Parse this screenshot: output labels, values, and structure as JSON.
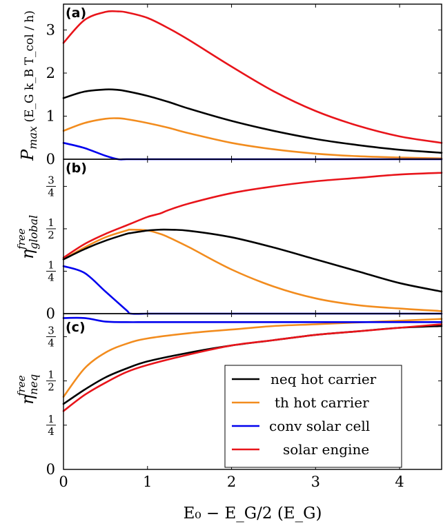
{
  "figure": {
    "xlabel": "E₀ − E_G/2 (E_G)",
    "legend": [
      "neq hot carrier",
      "th hot carrier",
      "conv solar cell",
      "solar engine"
    ]
  },
  "colors": {
    "neq hot carrier": "#000000",
    "th hot carrier": "#f28c1e",
    "conv solar cell": "#0000ee",
    "solar engine": "#e8141a"
  },
  "chart_data": [
    {
      "type": "line",
      "panel_label": "(a)",
      "ylabel": "P_max (E_G k_B T_col / h)",
      "xlim": [
        0,
        4.5
      ],
      "ylim": [
        0,
        3.6
      ],
      "x_ticks": [
        "0",
        "1",
        "2",
        "3",
        "4"
      ],
      "y_ticks": [
        {
          "v": 0,
          "t": "0"
        },
        {
          "v": 1,
          "t": "1"
        },
        {
          "v": 2,
          "t": "2"
        },
        {
          "v": 3,
          "t": "3"
        }
      ],
      "grid": false,
      "x": [
        0,
        0.25,
        0.5,
        0.65,
        0.75,
        1.0,
        1.25,
        1.5,
        2.0,
        2.5,
        3.0,
        3.5,
        4.0,
        4.5
      ],
      "series": [
        {
          "name": "neq hot carrier",
          "values": [
            1.42,
            1.57,
            1.62,
            1.61,
            1.58,
            1.47,
            1.33,
            1.17,
            0.89,
            0.66,
            0.47,
            0.33,
            0.22,
            0.15
          ]
        },
        {
          "name": "th hot carrier",
          "values": [
            0.66,
            0.84,
            0.94,
            0.95,
            0.93,
            0.84,
            0.73,
            0.6,
            0.38,
            0.23,
            0.13,
            0.07,
            0.04,
            0.02
          ]
        },
        {
          "name": "conv solar cell",
          "values": [
            0.38,
            0.26,
            0.08,
            0.0,
            0.0,
            0.0,
            0.0,
            0.0,
            0.0,
            0.0,
            0.0,
            0.0,
            0.0,
            0.0
          ]
        },
        {
          "name": "solar engine",
          "values": [
            2.7,
            3.23,
            3.42,
            3.43,
            3.41,
            3.28,
            3.04,
            2.76,
            2.15,
            1.58,
            1.12,
            0.78,
            0.53,
            0.38
          ]
        }
      ]
    },
    {
      "type": "line",
      "panel_label": "(b)",
      "ylabel": "η free global",
      "xlim": [
        0,
        4.5
      ],
      "ylim": [
        0,
        0.91
      ],
      "x_ticks": [
        "0",
        "1",
        "2",
        "3",
        "4"
      ],
      "y_ticks": [
        {
          "v": 0,
          "t": "0"
        },
        {
          "v": 0.25,
          "t": "1/4"
        },
        {
          "v": 0.5,
          "t": "1/2"
        },
        {
          "v": 0.75,
          "t": "3/4"
        }
      ],
      "grid": false,
      "x": [
        0,
        0.25,
        0.5,
        0.75,
        0.8,
        1.0,
        1.15,
        1.25,
        1.5,
        2.0,
        2.5,
        3.0,
        3.5,
        4.0,
        4.5
      ],
      "series": [
        {
          "name": "neq hot carrier",
          "values": [
            0.32,
            0.38,
            0.43,
            0.47,
            0.475,
            0.49,
            0.495,
            0.495,
            0.488,
            0.45,
            0.39,
            0.32,
            0.25,
            0.18,
            0.13
          ]
        },
        {
          "name": "th hot carrier",
          "values": [
            0.32,
            0.39,
            0.45,
            0.49,
            0.495,
            0.49,
            0.47,
            0.45,
            0.39,
            0.26,
            0.16,
            0.09,
            0.05,
            0.03,
            0.015
          ]
        },
        {
          "name": "conv solar cell",
          "values": [
            0.28,
            0.24,
            0.13,
            0.02,
            0.0,
            0.0,
            0.0,
            0.0,
            0.0,
            0.0,
            0.0,
            0.0,
            0.0,
            0.0,
            0.0
          ]
        },
        {
          "name": "solar engine",
          "values": [
            0.33,
            0.41,
            0.47,
            0.52,
            0.53,
            0.57,
            0.59,
            0.61,
            0.65,
            0.71,
            0.75,
            0.78,
            0.8,
            0.82,
            0.83
          ]
        }
      ]
    },
    {
      "type": "line",
      "panel_label": "(c)",
      "ylabel": "η free neq",
      "xlim": [
        0,
        4.5
      ],
      "ylim": [
        0,
        0.88
      ],
      "x_ticks": [
        "0",
        "1",
        "2",
        "3",
        "4"
      ],
      "y_ticks": [
        {
          "v": 0,
          "t": "0"
        },
        {
          "v": 0.25,
          "t": "1/4"
        },
        {
          "v": 0.5,
          "t": "1/2"
        },
        {
          "v": 0.75,
          "t": "3/4"
        }
      ],
      "grid": false,
      "legend_position": "bottom-right",
      "x": [
        0,
        0.25,
        0.5,
        0.75,
        1.0,
        1.5,
        2.0,
        2.5,
        3.0,
        3.5,
        4.0,
        4.5
      ],
      "series": [
        {
          "name": "neq hot carrier",
          "values": [
            0.37,
            0.45,
            0.52,
            0.57,
            0.61,
            0.66,
            0.7,
            0.73,
            0.76,
            0.78,
            0.8,
            0.81
          ]
        },
        {
          "name": "th hot carrier",
          "values": [
            0.41,
            0.57,
            0.66,
            0.71,
            0.74,
            0.77,
            0.79,
            0.81,
            0.82,
            0.83,
            0.84,
            0.85
          ]
        },
        {
          "name": "conv solar cell",
          "values": [
            0.855,
            0.855,
            0.835,
            0.832,
            0.832,
            0.832,
            0.832,
            0.832,
            0.832,
            0.832,
            0.832,
            0.832
          ]
        },
        {
          "name": "solar engine",
          "values": [
            0.33,
            0.42,
            0.49,
            0.55,
            0.59,
            0.65,
            0.7,
            0.73,
            0.76,
            0.78,
            0.8,
            0.82
          ]
        }
      ]
    }
  ]
}
